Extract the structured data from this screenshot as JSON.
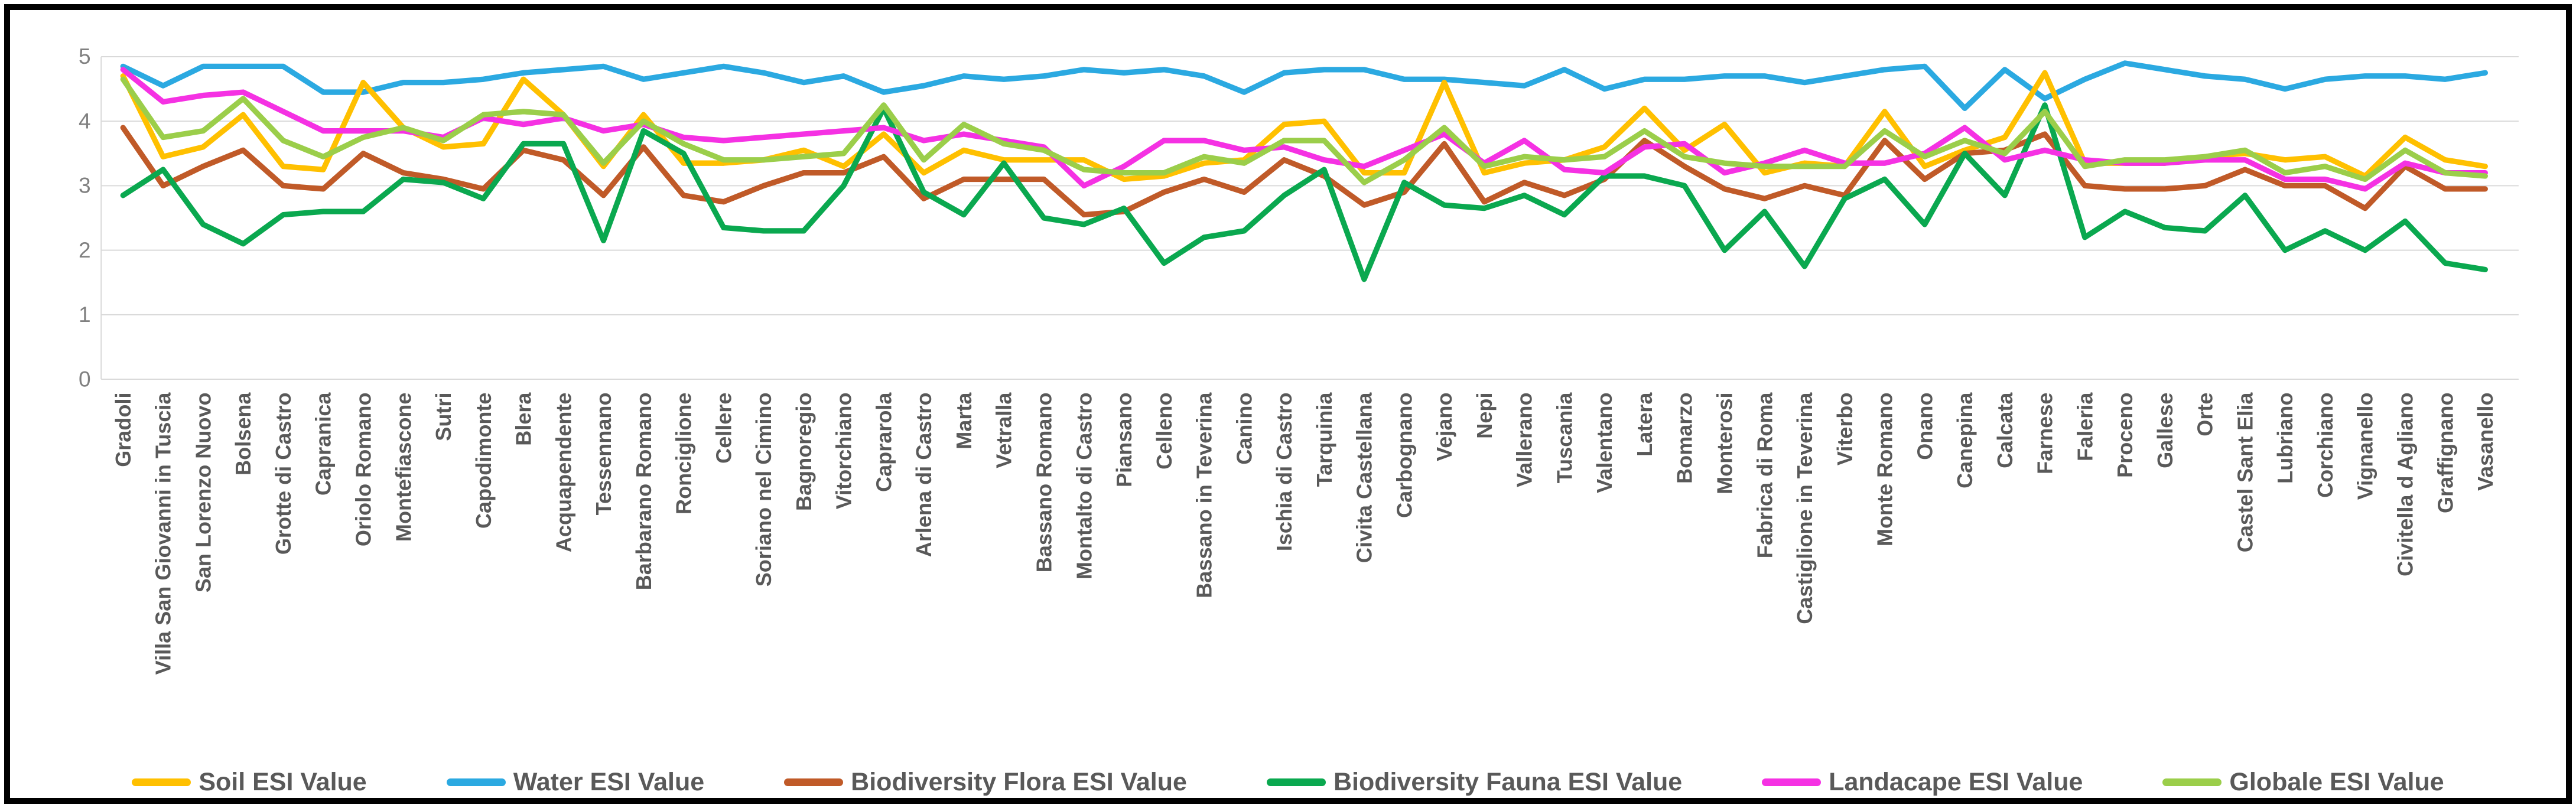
{
  "y_axis": {
    "ticks": [
      "0",
      "1",
      "2",
      "3",
      "4",
      "5"
    ]
  },
  "chart_data": {
    "type": "line",
    "title": "",
    "xlabel": "",
    "ylabel": "",
    "ylim": [
      0,
      5
    ],
    "grid": true,
    "legend_position": "bottom",
    "x_tick_rotation": 90,
    "categories": [
      "Gradoli",
      "Villa San Giovanni in Tuscia",
      "San Lorenzo Nuovo",
      "Bolsena",
      "Grotte di Castro",
      "Capranica",
      "Oriolo Romano",
      "Montefiascone",
      "Sutri",
      "Capodimonte",
      "Blera",
      "Acquapendente",
      "Tessennano",
      "Barbarano Romano",
      "Ronciglione",
      "Cellere",
      "Soriano nel Cimino",
      "Bagnoregio",
      "Vitorchiano",
      "Caprarola",
      "Arlena di Castro",
      "Marta",
      "Vetralla",
      "Bassano Romano",
      "Montalto di Castro",
      "Piansano",
      "Celleno",
      "Bassano in Teverina",
      "Canino",
      "Ischia di Castro",
      "Tarquinia",
      "Civita Castellana",
      "Carbognano",
      "Vejano",
      "Nepi",
      "Vallerano",
      "Tuscania",
      "Valentano",
      "Latera",
      "Bomarzo",
      "Monterosi",
      "Fabrica di Roma",
      "Castiglione in Teverina",
      "Viterbo",
      "Monte Romano",
      "Onano",
      "Canepina",
      "Calcata",
      "Farnese",
      "Faleria",
      "Proceno",
      "Gallese",
      "Orte",
      "Castel Sant Elia",
      "Lubriano",
      "Corchiano",
      "Vignanello",
      "Civitella d Agliano",
      "Graffignano",
      "Vasanello"
    ],
    "series": [
      {
        "name": "Soil ESI Value",
        "color": "#FFC000",
        "values": [
          4.7,
          3.45,
          3.6,
          4.1,
          3.3,
          3.25,
          4.6,
          3.9,
          3.6,
          3.65,
          4.65,
          4.1,
          3.3,
          4.1,
          3.35,
          3.35,
          3.4,
          3.55,
          3.3,
          3.8,
          3.2,
          3.55,
          3.4,
          3.4,
          3.4,
          3.1,
          3.15,
          3.35,
          3.4,
          3.95,
          4.0,
          3.2,
          3.2,
          4.6,
          3.2,
          3.35,
          3.4,
          3.6,
          4.2,
          3.55,
          3.95,
          3.2,
          3.35,
          3.3,
          4.15,
          3.3,
          3.55,
          3.75,
          4.75,
          3.35,
          3.35,
          3.35,
          3.45,
          3.5,
          3.4,
          3.45,
          3.15,
          3.75,
          3.4,
          3.3
        ]
      },
      {
        "name": "Water ESI Value",
        "color": "#2BA9E1",
        "values": [
          4.85,
          4.55,
          4.85,
          4.85,
          4.85,
          4.45,
          4.45,
          4.6,
          4.6,
          4.65,
          4.75,
          4.8,
          4.85,
          4.65,
          4.75,
          4.85,
          4.75,
          4.6,
          4.7,
          4.45,
          4.55,
          4.7,
          4.65,
          4.7,
          4.8,
          4.75,
          4.8,
          4.7,
          4.45,
          4.75,
          4.8,
          4.8,
          4.65,
          4.65,
          4.6,
          4.55,
          4.8,
          4.5,
          4.65,
          4.65,
          4.7,
          4.7,
          4.6,
          4.7,
          4.8,
          4.85,
          4.2,
          4.8,
          4.35,
          4.65,
          4.9,
          4.8,
          4.7,
          4.65,
          4.5,
          4.65,
          4.7,
          4.7,
          4.65,
          4.75
        ]
      },
      {
        "name": "Biodiversity Flora ESI Value",
        "color": "#C05A28",
        "values": [
          3.9,
          3.0,
          3.3,
          3.55,
          3.0,
          2.95,
          3.5,
          3.2,
          3.1,
          2.95,
          3.55,
          3.4,
          2.85,
          3.6,
          2.85,
          2.75,
          3.0,
          3.2,
          3.2,
          3.45,
          2.8,
          3.1,
          3.1,
          3.1,
          2.55,
          2.6,
          2.9,
          3.1,
          2.9,
          3.4,
          3.15,
          2.7,
          2.9,
          3.65,
          2.75,
          3.05,
          2.85,
          3.1,
          3.7,
          3.3,
          2.95,
          2.8,
          3.0,
          2.85,
          3.7,
          3.1,
          3.5,
          3.55,
          3.8,
          3.0,
          2.95,
          2.95,
          3.0,
          3.25,
          3.0,
          3.0,
          2.65,
          3.3,
          2.95,
          2.95
        ]
      },
      {
        "name": "Biodiversity Fauna ESI Value",
        "color": "#0AA84F",
        "values": [
          2.85,
          3.25,
          2.4,
          2.1,
          2.55,
          2.6,
          2.6,
          3.1,
          3.05,
          2.8,
          3.65,
          3.65,
          2.15,
          3.85,
          3.5,
          2.35,
          2.3,
          2.3,
          3.0,
          4.2,
          2.9,
          2.55,
          3.35,
          2.5,
          2.4,
          2.65,
          1.8,
          2.2,
          2.3,
          2.85,
          3.25,
          1.55,
          3.05,
          2.7,
          2.65,
          2.85,
          2.55,
          3.15,
          3.15,
          3.0,
          2.0,
          2.6,
          1.75,
          2.8,
          3.1,
          2.4,
          3.5,
          2.85,
          4.25,
          2.2,
          2.6,
          2.35,
          2.3,
          2.85,
          2.0,
          2.3,
          2.0,
          2.45,
          1.8,
          1.7
        ]
      },
      {
        "name": "Landacape ESI Value",
        "color": "#F531E3",
        "values": [
          4.8,
          4.3,
          4.4,
          4.45,
          4.15,
          3.85,
          3.85,
          3.85,
          3.75,
          4.05,
          3.95,
          4.05,
          3.85,
          3.95,
          3.75,
          3.7,
          3.75,
          3.8,
          3.85,
          3.9,
          3.7,
          3.8,
          3.7,
          3.6,
          3.0,
          3.3,
          3.7,
          3.7,
          3.55,
          3.6,
          3.4,
          3.3,
          3.55,
          3.8,
          3.35,
          3.7,
          3.25,
          3.2,
          3.6,
          3.65,
          3.2,
          3.35,
          3.55,
          3.35,
          3.35,
          3.5,
          3.9,
          3.4,
          3.55,
          3.4,
          3.35,
          3.35,
          3.4,
          3.4,
          3.1,
          3.1,
          2.95,
          3.35,
          3.2,
          3.2
        ]
      },
      {
        "name": "Globale ESI Value",
        "color": "#9BCE4A",
        "values": [
          4.65,
          3.75,
          3.85,
          4.35,
          3.7,
          3.45,
          3.75,
          3.9,
          3.7,
          4.1,
          4.15,
          4.1,
          3.35,
          4.0,
          3.65,
          3.4,
          3.4,
          3.45,
          3.5,
          4.25,
          3.4,
          3.95,
          3.65,
          3.55,
          3.25,
          3.2,
          3.2,
          3.45,
          3.35,
          3.7,
          3.7,
          3.05,
          3.4,
          3.9,
          3.3,
          3.45,
          3.4,
          3.45,
          3.85,
          3.45,
          3.35,
          3.3,
          3.3,
          3.3,
          3.85,
          3.45,
          3.7,
          3.5,
          4.15,
          3.3,
          3.4,
          3.4,
          3.45,
          3.55,
          3.2,
          3.3,
          3.1,
          3.55,
          3.2,
          3.15
        ]
      }
    ]
  }
}
